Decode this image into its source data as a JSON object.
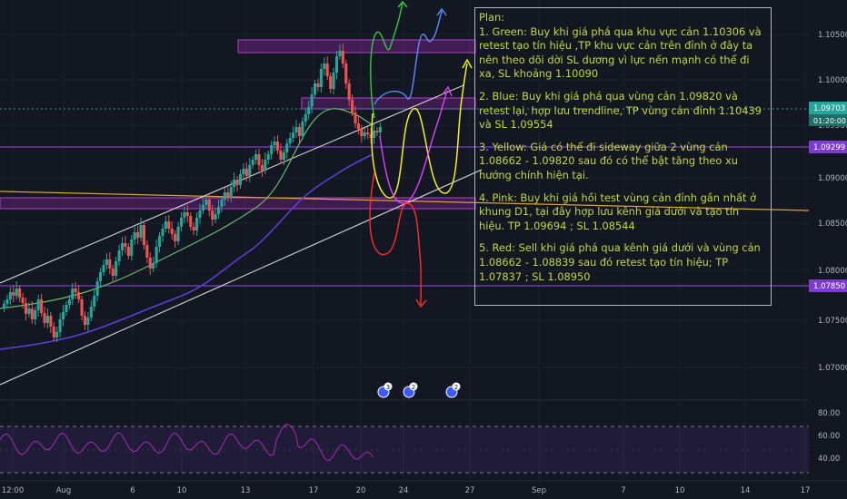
{
  "chart_data": {
    "type": "candlestick",
    "instrument_note": "",
    "price_axis_ticks": [
      "1.10500",
      "1.10000",
      "1.09500",
      "1.09000",
      "1.08500",
      "1.08000",
      "1.07500",
      "1.07000"
    ],
    "time_axis_ticks": [
      "12:00",
      "Aug",
      "6",
      "10",
      "13",
      "17",
      "20",
      "24",
      "27",
      "Sep",
      "7",
      "10",
      "14",
      "17"
    ],
    "current_price_label": "1.09703",
    "countdown_label": "01:20:00",
    "level_labels": [
      "1.09299",
      "1.07850"
    ],
    "oscillator_ticks": [
      "80.00",
      "60.00",
      "40.00"
    ],
    "event_markers": [
      "3",
      "2",
      "2"
    ],
    "colors": {
      "up": "#26a69a",
      "down": "#ef5350",
      "zone": "#9c27b0",
      "level_line": "#7e3ccf",
      "ema_fast": "#66bb6a",
      "ema_slow": "#5c3fd6",
      "orange": "#e0a030",
      "green": "#2ecc40",
      "blue": "#5b8bff",
      "yellow": "#f2ee22",
      "pink": "#e040fb",
      "red": "#ff2d2d",
      "oscillator": "#9c27b0",
      "plan_text": "#c5d63f"
    }
  },
  "plan": {
    "title": "Plan:",
    "items": [
      "1. Green: Buy khi giá phá qua khu vực cản 1.10306 và retest tạo tín hiệu ,TP khu vực cản trên đỉnh ở đây ta nên theo dõi dời SL dương vì lực nến mạnh có thể đi xa, SL khoảng 1.10090",
      "2. Blue: Buy khi giá phá qua vùng cản 1.09820 và retest lại, hợp lưu trendline, TP vùng cản đỉnh 1.10439 và SL 1.09554",
      "3. Yellow: Giá có thể đi sideway giữa 2 vùng cản 1.08662 - 1.09820 sau đó có thể bật tăng theo xu hướng chính hiện tại.",
      "4. Pink: Buy khi giá hồi test vùng cản đỉnh gần nhất ở khung D1, tại đây hợp lưu kênh giá dưới và tạo tín hiệu. TP 1.09694 ; SL 1.08544",
      "5. Red: Sell khi giá phá qua kênh giá dưới và vùng cản 1.08662 - 1.08839 sau đó retest tạo tín hiệu; TP 1.07837 ; SL 1.08950"
    ]
  }
}
